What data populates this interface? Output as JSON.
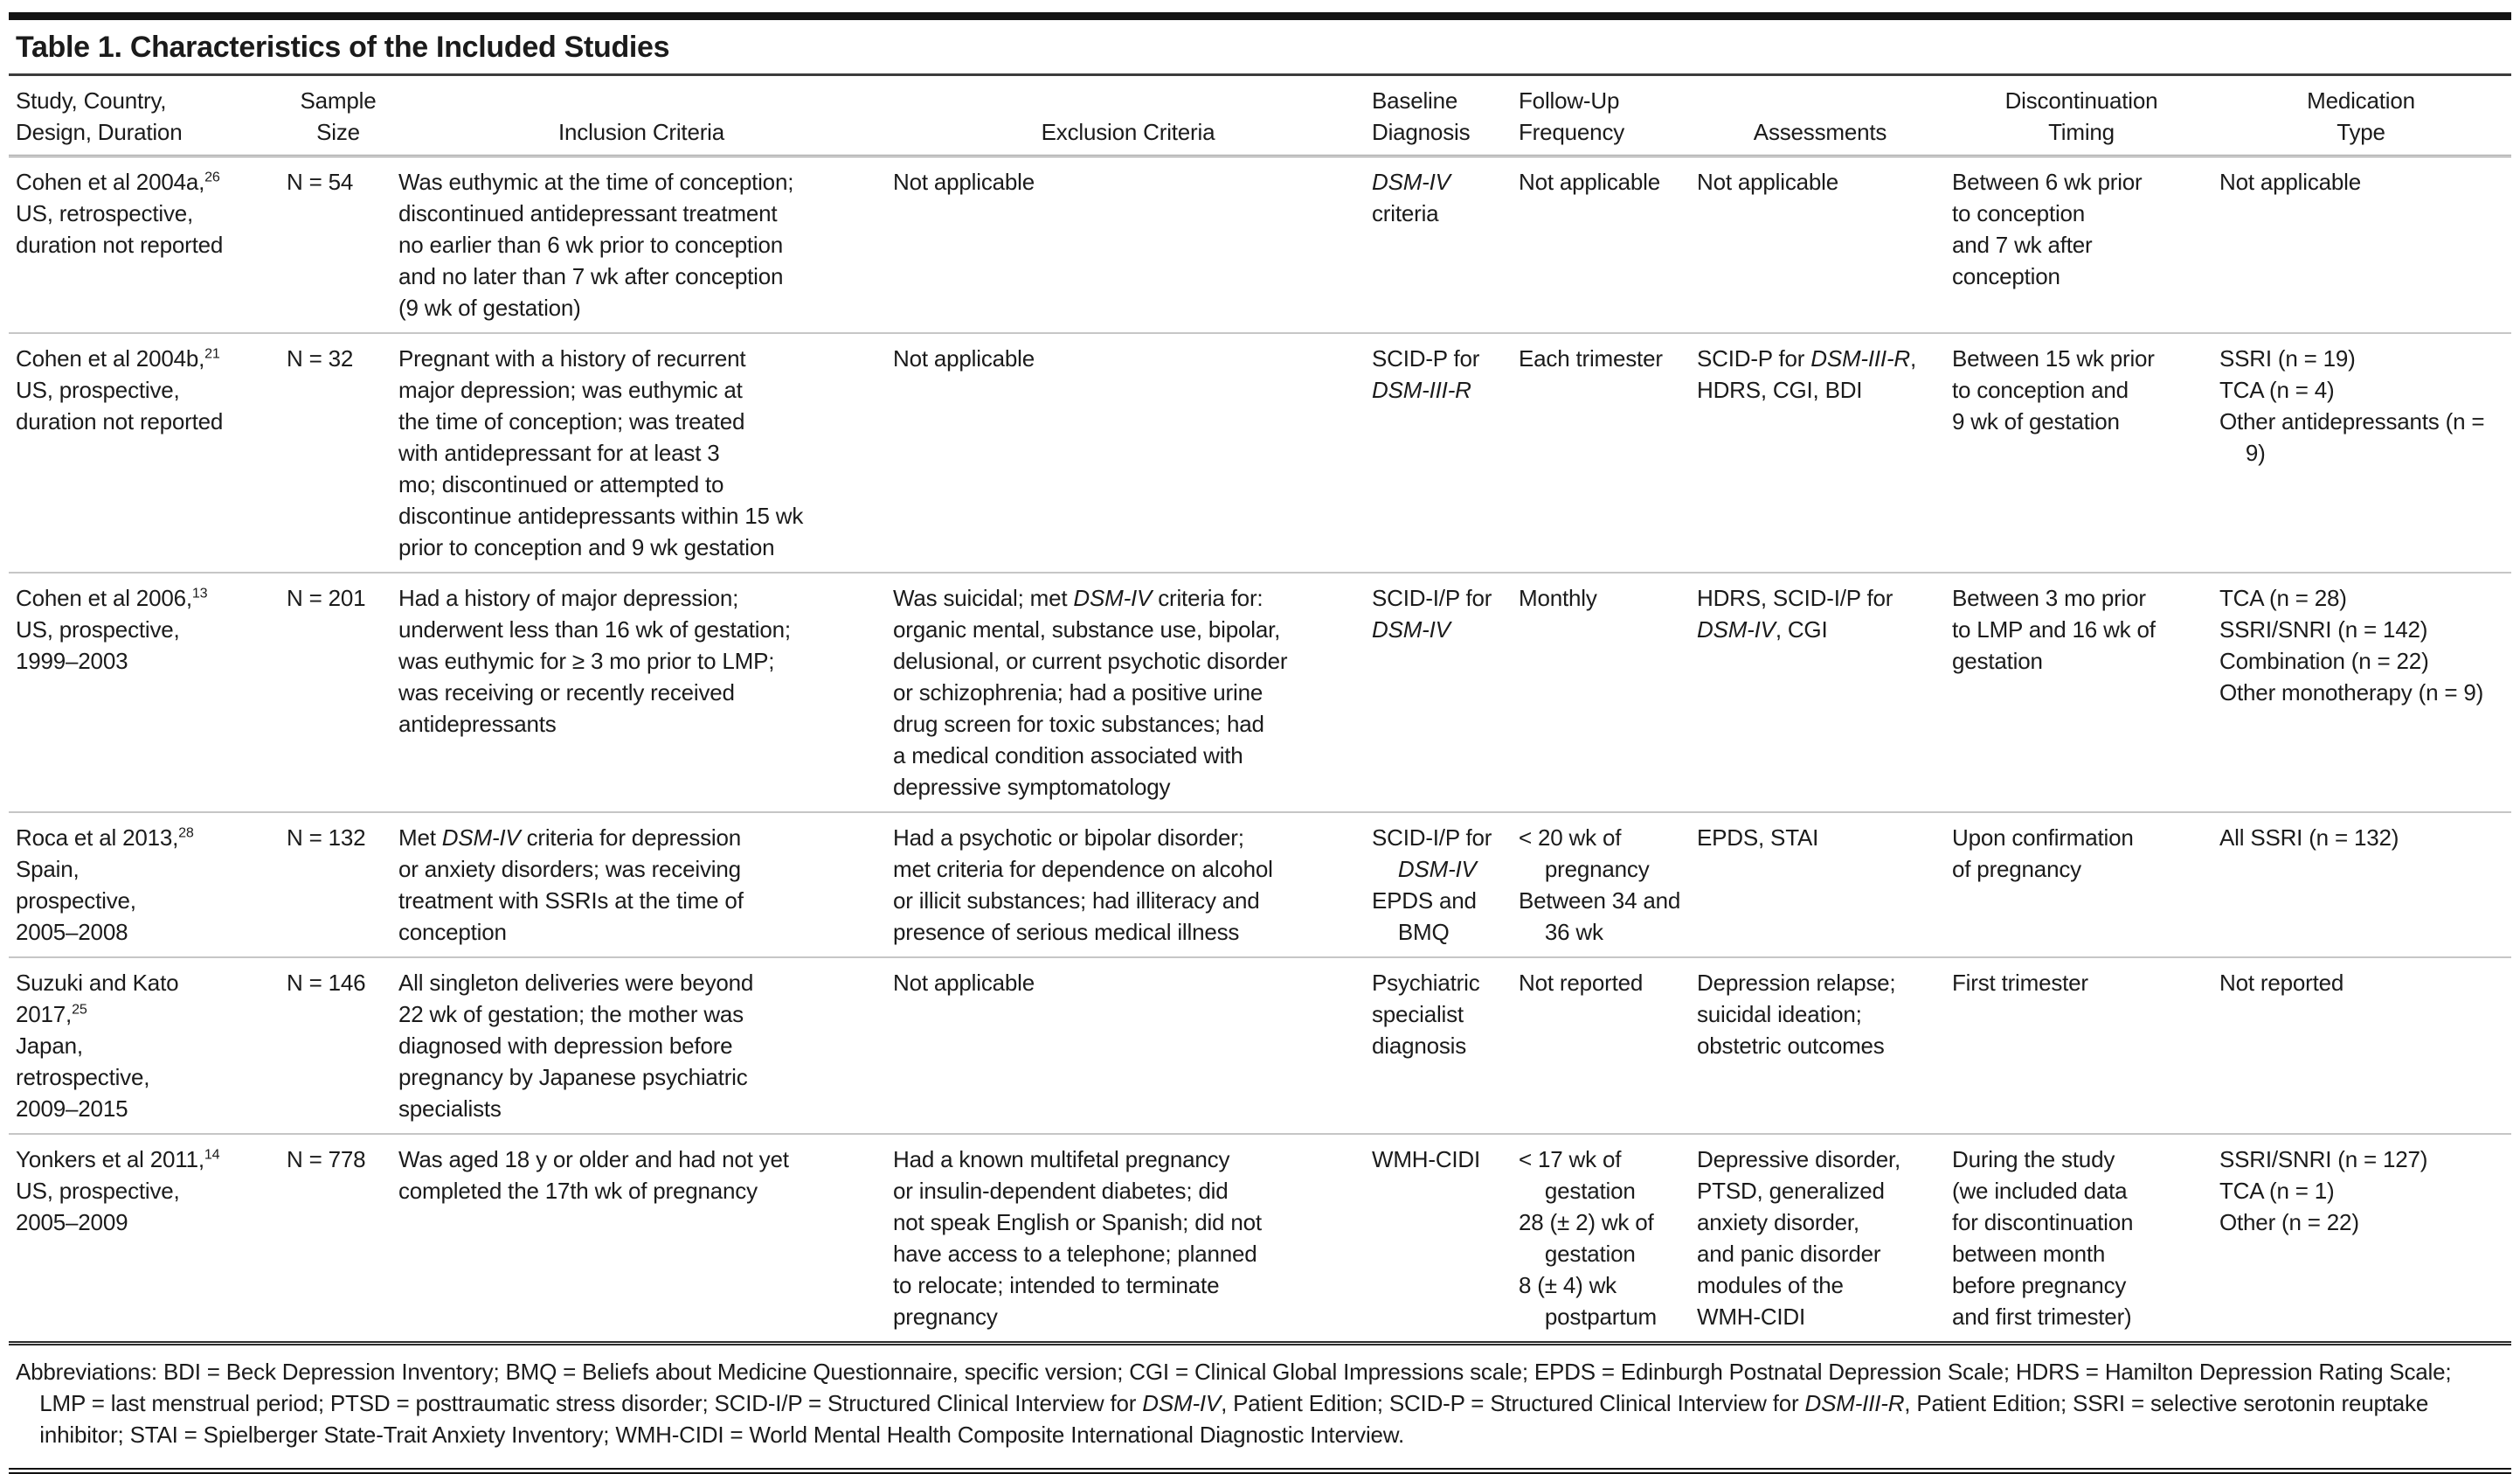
{
  "title": "Table 1. Characteristics of the Included Studies",
  "table": {
    "columns": [
      "Study, Country,\nDesign, Duration",
      "Sample\nSize",
      "Inclusion Criteria",
      "Exclusion Criteria",
      "Baseline\nDiagnosis",
      "Follow-Up\nFrequency",
      "Assessments",
      "Discontinuation\nTiming",
      "Medication\nType"
    ],
    "rows": [
      {
        "study": "Cohen et al 2004a,^26^\nUS, retrospective,\nduration not reported",
        "sample": "N = 54",
        "inclusion": "Was euthymic at the time of conception;\ndiscontinued antidepressant treatment\nno earlier than 6 wk prior to conception\nand no later than 7 wk after conception\n(9 wk of gestation)",
        "exclusion": "Not applicable",
        "baseline": "*DSM-IV*\ncriteria",
        "followup": "Not applicable",
        "assessments": "Not applicable",
        "discontinuation": "Between 6 wk prior\nto conception\nand 7 wk after\nconception",
        "medication": "Not applicable"
      },
      {
        "study": "Cohen et al 2004b,^21^\nUS, prospective,\nduration not reported",
        "sample": "N = 32",
        "inclusion": "Pregnant with a history of recurrent\nmajor depression; was euthymic at\nthe time of conception; was treated\nwith antidepressant for at least 3\nmo; discontinued or attempted to\ndiscontinue antidepressants within 15 wk\nprior to conception and 9 wk gestation",
        "exclusion": "Not applicable",
        "baseline": "SCID-P for\n*DSM-III-R*",
        "followup": "Each trimester",
        "assessments": "SCID-P for *DSM-III-R*,\nHDRS, CGI, BDI",
        "discontinuation": "Between 15 wk prior\nto conception and\n9 wk of gestation",
        "medication": [
          "SSRI (n = 19)",
          "TCA (n = 4)",
          "Other antidepressants (n = 9)"
        ]
      },
      {
        "study": "Cohen et al 2006,^13^\nUS, prospective,\n1999–2003",
        "sample": "N = 201",
        "inclusion": "Had a history of major depression;\nunderwent less than 16 wk of gestation;\nwas euthymic for ≥ 3 mo prior to LMP;\nwas receiving or recently received\nantidepressants",
        "exclusion": "Was suicidal; met *DSM-IV* criteria for:\norganic mental, substance use, bipolar,\ndelusional, or current psychotic disorder\nor schizophrenia; had a positive urine\ndrug screen for toxic substances; had\na medical condition associated with\ndepressive symptomatology",
        "baseline": "SCID-I/P for\n*DSM-IV*",
        "followup": "Monthly",
        "assessments": "HDRS, SCID-I/P for\n*DSM-IV*, CGI",
        "discontinuation": "Between 3 mo prior\nto LMP and 16 wk of\ngestation",
        "medication": [
          "TCA (n = 28)",
          "SSRI/SNRI (n = 142)",
          "Combination (n = 22)",
          "Other monotherapy (n = 9)"
        ]
      },
      {
        "study": "Roca et al 2013,^28^\nSpain,\nprospective,\n2005–2008",
        "sample": "N = 132",
        "inclusion": "Met *DSM-IV* criteria for depression\nor anxiety disorders; was receiving\ntreatment with SSRIs at the time of\nconception",
        "exclusion": "Had a psychotic or bipolar disorder;\nmet criteria for dependence on alcohol\nor illicit substances; had illiteracy and\npresence of serious medical illness",
        "baseline": [
          "SCID-I/P for *DSM-IV*",
          "EPDS and BMQ"
        ],
        "followup": [
          "< 20 wk of pregnancy",
          "Between 34 and 36 wk"
        ],
        "assessments": "EPDS, STAI",
        "discontinuation": "Upon confirmation\nof pregnancy",
        "medication": "All SSRI (n = 132)"
      },
      {
        "study": "Suzuki and Kato\n2017,^25^\nJapan,\nretrospective,\n2009–2015",
        "sample": "N = 146",
        "inclusion": "All singleton deliveries were beyond\n22 wk of gestation; the mother was\ndiagnosed with depression before\npregnancy by Japanese psychiatric\nspecialists",
        "exclusion": "Not applicable",
        "baseline": "Psychiatric\nspecialist\ndiagnosis",
        "followup": "Not reported",
        "assessments": "Depression relapse;\nsuicidal ideation;\nobstetric outcomes",
        "discontinuation": "First trimester",
        "medication": "Not reported"
      },
      {
        "study": "Yonkers et al 2011,^14^\nUS, prospective,\n2005–2009",
        "sample": "N = 778",
        "inclusion": "Was aged 18 y or older and had not yet\ncompleted the 17th wk of pregnancy",
        "exclusion": "Had a known multifetal pregnancy\nor insulin-dependent diabetes; did\nnot speak English or Spanish; did not\nhave access to a telephone; planned\nto relocate; intended to terminate\npregnancy",
        "baseline": "WMH-CIDI",
        "followup": [
          "< 17 wk of gestation",
          "28 (± 2) wk of gestation",
          "8 (± 4) wk postpartum"
        ],
        "assessments": "Depressive disorder,\nPTSD, generalized\nanxiety disorder,\nand panic disorder\nmodules of the\nWMH-CIDI",
        "discontinuation": "During the study\n(we included data\nfor discontinuation\nbetween month\nbefore pregnancy\nand first trimester)",
        "medication": [
          "SSRI/SNRI (n = 127)",
          "TCA (n = 1)",
          "Other (n = 22)"
        ]
      }
    ]
  },
  "footnote": "Abbreviations: BDI = Beck Depression Inventory; BMQ = Beliefs about Medicine Questionnaire, specific version; CGI = Clinical Global Impressions scale; EPDS = Edinburgh Postnatal Depression Scale; HDRS = Hamilton Depression Rating Scale; LMP = last menstrual period; PTSD = posttraumatic stress disorder; SCID-I/P = Structured Clinical Interview for *DSM-IV*, Patient Edition; SCID-P = Structured Clinical Interview for *DSM-III-R*, Patient Edition; SSRI = selective serotonin reuptake inhibitor; STAI = Spielberger State-Trait Anxiety Inventory; WMH-CIDI = World Mental Health Composite International Diagnostic Interview."
}
